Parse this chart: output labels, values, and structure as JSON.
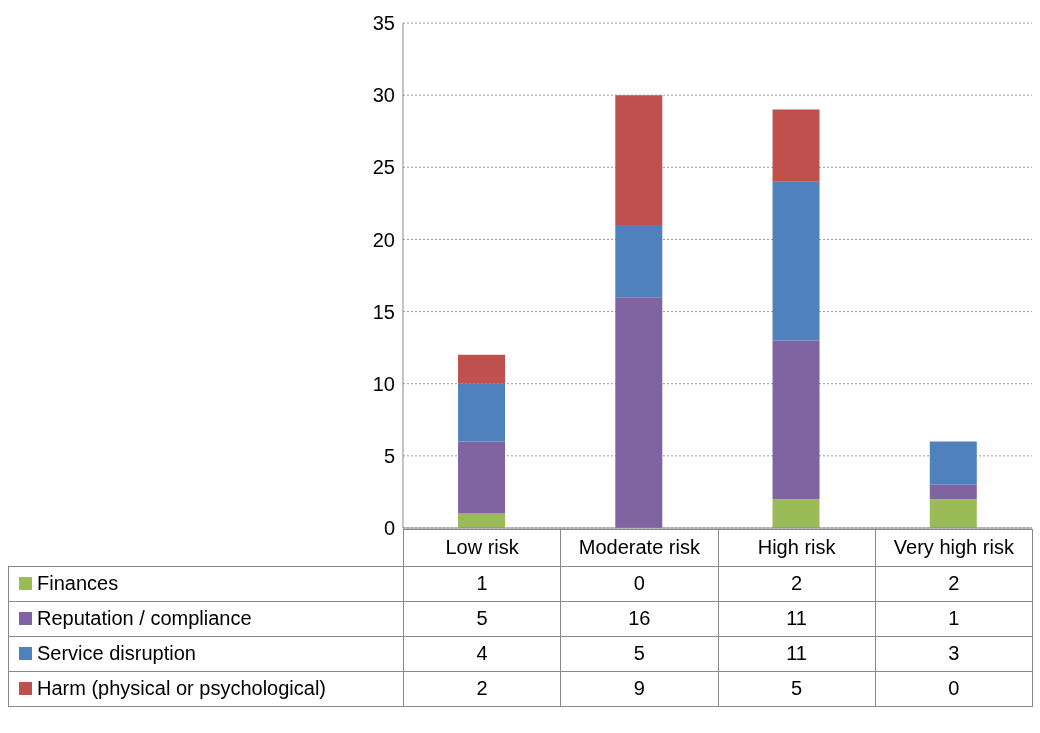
{
  "chart_data": {
    "type": "bar",
    "stacked": true,
    "categories": [
      "Low risk",
      "Moderate risk",
      "High risk",
      "Very high risk"
    ],
    "series": [
      {
        "name": "Finances",
        "color": "#9bbb59",
        "values": [
          1,
          0,
          2,
          2
        ]
      },
      {
        "name": "Reputation / compliance",
        "color": "#8064a2",
        "values": [
          5,
          16,
          11,
          1
        ]
      },
      {
        "name": "Service disruption",
        "color": "#4f81bd",
        "values": [
          4,
          5,
          11,
          3
        ]
      },
      {
        "name": "Harm (physical or psychological)",
        "color": "#c0504d",
        "values": [
          2,
          9,
          5,
          0
        ]
      }
    ],
    "ylim": [
      0,
      35
    ],
    "yticks": [
      0,
      5,
      10,
      15,
      20,
      25,
      30,
      35
    ],
    "grid": "y",
    "data_labels": true,
    "legend": "bottom"
  }
}
